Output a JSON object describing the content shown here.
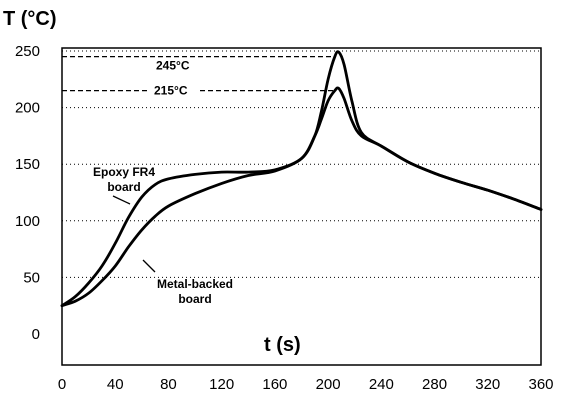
{
  "chart_data": {
    "type": "line",
    "xlabel": "t (s)",
    "ylabel": "T (°C)",
    "xlim": [
      0,
      360
    ],
    "ylim": [
      0,
      255
    ],
    "x_ticks": [
      0,
      40,
      80,
      120,
      160,
      200,
      240,
      280,
      320,
      360
    ],
    "y_ticks": [
      0,
      50,
      100,
      150,
      200,
      250
    ],
    "grid": "horizontal dotted",
    "series": [
      {
        "name": "Epoxy FR4 board",
        "x": [
          0,
          10,
          20,
          30,
          40,
          50,
          60,
          70,
          80,
          100,
          120,
          140,
          160,
          180,
          190,
          195,
          200,
          205,
          208,
          212,
          218,
          225,
          240,
          260,
          280,
          300,
          320,
          340,
          360
        ],
        "y": [
          25,
          33,
          45,
          60,
          80,
          103,
          121,
          132,
          137,
          141,
          143,
          143,
          145,
          155,
          175,
          197,
          225,
          245,
          249,
          238,
          205,
          178,
          166,
          152,
          142,
          134,
          127,
          119,
          110
        ]
      },
      {
        "name": "Metal-backed board",
        "x": [
          0,
          10,
          20,
          30,
          40,
          50,
          60,
          70,
          80,
          100,
          120,
          140,
          160,
          180,
          190,
          195,
          200,
          205,
          208,
          212,
          218,
          225,
          240,
          260,
          280,
          300,
          320,
          340,
          360
        ],
        "y": [
          25,
          29,
          36,
          47,
          60,
          77,
          92,
          104,
          113,
          124,
          133,
          140,
          144,
          155,
          175,
          190,
          206,
          215,
          217,
          208,
          188,
          175,
          166,
          152,
          142,
          134,
          127,
          119,
          110
        ]
      }
    ],
    "reference_lines": [
      {
        "y": 245,
        "label": "245°C"
      },
      {
        "y": 215,
        "label": "215°C"
      }
    ],
    "annotations": [
      {
        "text_lines": [
          "Epoxy FR4",
          "board"
        ],
        "series": "Epoxy FR4 board"
      },
      {
        "text_lines": [
          "Metal-backed",
          "board"
        ],
        "series": "Metal-backed board"
      }
    ]
  }
}
